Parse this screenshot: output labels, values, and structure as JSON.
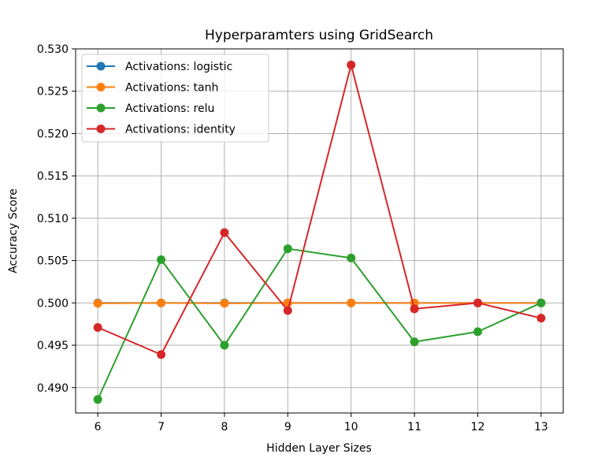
{
  "chart_data": {
    "type": "line",
    "title": "Hyperparamters using GridSearch",
    "xlabel": "Hidden Layer Sizes",
    "ylabel": "Accuracy Score",
    "x": [
      6,
      7,
      8,
      9,
      10,
      11,
      12,
      13
    ],
    "xlim": [
      5.65,
      13.35
    ],
    "ylim": [
      0.487,
      0.53
    ],
    "xticks": [
      6,
      7,
      8,
      9,
      10,
      11,
      12,
      13
    ],
    "xtick_labels": [
      "6",
      "7",
      "8",
      "9",
      "10",
      "11",
      "12",
      "13"
    ],
    "yticks": [
      0.49,
      0.495,
      0.5,
      0.505,
      0.51,
      0.515,
      0.52,
      0.525,
      0.53
    ],
    "ytick_labels": [
      "0.490",
      "0.495",
      "0.500",
      "0.505",
      "0.510",
      "0.515",
      "0.520",
      "0.525",
      "0.530"
    ],
    "grid": true,
    "legend_position": "top-left",
    "series": [
      {
        "name": "Activations: logistic",
        "color": "#1f77b4",
        "values": [
          0.5,
          0.5,
          0.5,
          0.5,
          0.5,
          0.5,
          0.5,
          0.5
        ]
      },
      {
        "name": "Activations: tanh",
        "color": "#ff7f0e",
        "values": [
          0.49995,
          0.5,
          0.49995,
          0.5,
          0.5,
          0.5,
          0.5,
          0.5
        ]
      },
      {
        "name": "Activations: relu",
        "color": "#2ca02c",
        "values": [
          0.4886,
          0.5051,
          0.495,
          0.5064,
          0.5053,
          0.4954,
          0.4966,
          0.5
        ]
      },
      {
        "name": "Activations: identity",
        "color": "#d62728",
        "values": [
          0.4971,
          0.4939,
          0.5083,
          0.4991,
          0.5281,
          0.4993,
          0.5,
          0.4982
        ]
      }
    ]
  }
}
